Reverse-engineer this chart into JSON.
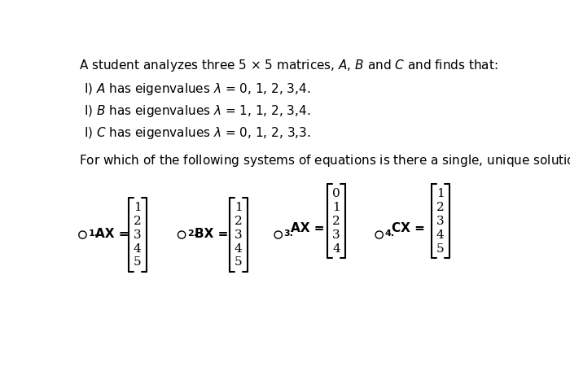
{
  "bg_color": "#ffffff",
  "title_text": "A student analyzes three 5 $\\times$ 5 matrices, $A$, $B$ and $C$ and finds that:",
  "eigen_lines": [
    "I) $A$ has eigenvalues $\\lambda$ = 0, 1, 2, 3,4.",
    "I) $B$ has eigenvalues $\\lambda$ = 1, 1, 2, 3,4.",
    "I) $C$ has eigenvalues $\\lambda$ = 0, 1, 2, 3,3."
  ],
  "question_text": "For which of the following systems of equations is there a single, unique solution, $X$.",
  "options": [
    {
      "num": "1",
      "label": "$_{1.}$ $\\mathbf{AX}$ =",
      "vec": [
        "1",
        "2",
        "3",
        "4",
        "5"
      ]
    },
    {
      "num": "2",
      "label": "$_{2.}$ $\\mathbf{BX}$ =",
      "vec": [
        "1",
        "2",
        "3",
        "4",
        "5"
      ]
    },
    {
      "num": "3",
      "label": "$_{3.}$",
      "eq": "$\\mathbf{AX}$ =",
      "vec": [
        "0",
        "1",
        "2",
        "3",
        "4"
      ]
    },
    {
      "num": "4",
      "label": "$_{4.}$",
      "eq": "$\\mathbf{CX}$ =",
      "vec": [
        "1",
        "2",
        "3",
        "4",
        "5"
      ]
    }
  ],
  "title_fs": 11,
  "body_fs": 11,
  "vec_fs": 11,
  "label_fs": 10
}
